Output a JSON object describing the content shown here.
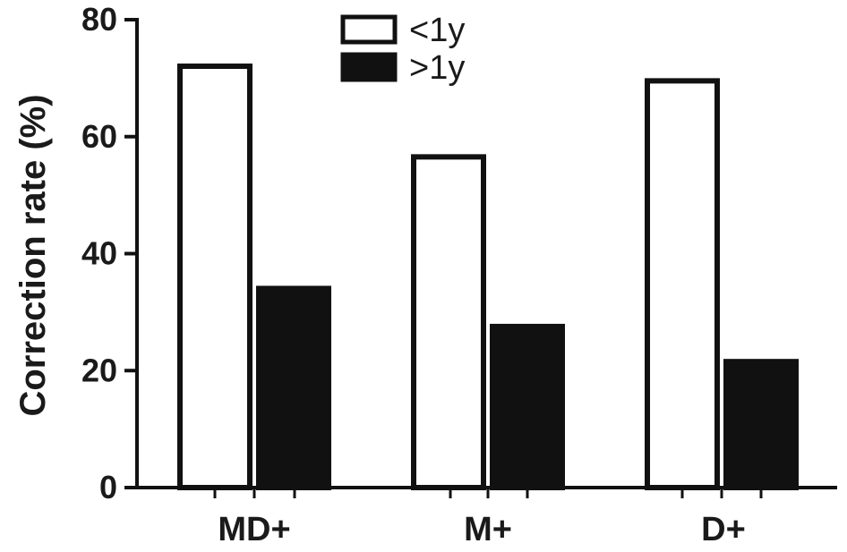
{
  "chart_data": {
    "type": "bar",
    "categories": [
      "MD+",
      "M+",
      "D+"
    ],
    "series": [
      {
        "name": "<1y",
        "values": [
          72.5,
          57,
          70
        ],
        "fill": "#ffffff",
        "stroke": "#111111"
      },
      {
        "name": ">1y",
        "values": [
          34.5,
          28,
          22
        ],
        "fill": "#111111",
        "stroke": "#111111"
      }
    ],
    "title": "",
    "xlabel": "",
    "ylabel": "Correction rate (%)",
    "ylim": [
      0,
      80
    ],
    "yticks": [
      "0",
      "20",
      "40",
      "60",
      "80"
    ],
    "grid": false,
    "legend_position": "top-center"
  }
}
